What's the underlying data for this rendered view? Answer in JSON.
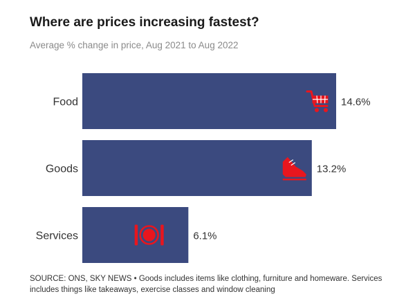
{
  "title": "Where are prices increasing fastest?",
  "subtitle": "Average % change in price, Aug 2021 to Aug 2022",
  "colors": {
    "bar": "#3b4a7f",
    "icon": "#e8161e"
  },
  "chart_data": {
    "type": "bar",
    "orientation": "horizontal",
    "title": "Where are prices increasing fastest?",
    "subtitle": "Average % change in price, Aug 2021 to Aug 2022",
    "categories": [
      "Food",
      "Goods",
      "Services"
    ],
    "values": [
      14.6,
      13.2,
      6.1
    ],
    "value_labels": [
      "14.6%",
      "13.2%",
      "6.1%"
    ],
    "icons": [
      "shopping-cart-icon",
      "shoe-icon",
      "plate-cutlery-icon"
    ],
    "xlim": [
      0,
      14.6
    ],
    "grid": false,
    "legend": "none"
  },
  "footnote": "SOURCE: ONS, SKY NEWS • Goods includes items like clothing, furniture and homeware. Services includes things like takeaways, exercise classes and window cleaning"
}
